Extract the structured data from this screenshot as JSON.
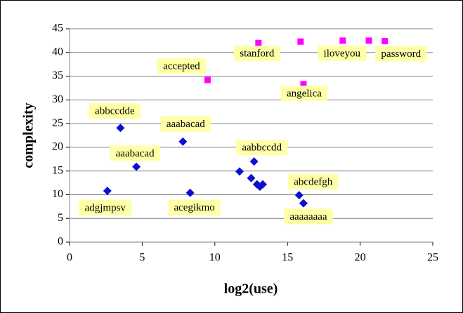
{
  "chart_data": {
    "type": "scatter",
    "xlabel": "log2(use)",
    "ylabel": "complexity",
    "xlim": [
      0,
      25
    ],
    "xticks": [
      0,
      5,
      10,
      15,
      20,
      25
    ],
    "ylim": [
      0,
      45
    ],
    "yticks": [
      0,
      5,
      10,
      15,
      20,
      25,
      30,
      35,
      40,
      45
    ],
    "grid": true,
    "series": [
      {
        "color": "#0a10d0",
        "marker": "diamond",
        "x": [
          2.6,
          3.5,
          4.6,
          7.8,
          8.3,
          11.7,
          12.5,
          12.7,
          12.9,
          13.1,
          13.3,
          15.8,
          16.1
        ],
        "values": [
          10.8,
          24.1,
          15.9,
          21.2,
          10.4,
          14.9,
          13.5,
          17.0,
          12.2,
          11.7,
          12.2,
          9.9,
          8.2
        ],
        "labels": [
          "adgjmpsv",
          "abbccdde",
          "aaabacad",
          "aaabacad",
          "acegikmo",
          null,
          null,
          "aabbccdd",
          null,
          null,
          null,
          "abcdefgh",
          "aaaaaaaa"
        ]
      },
      {
        "color": "#ff00ff",
        "marker": "square",
        "x": [
          9.5,
          13.0,
          15.9,
          16.1,
          18.8,
          20.6,
          21.7
        ],
        "values": [
          34.2,
          42.0,
          42.3,
          33.3,
          42.5,
          42.5,
          42.4
        ],
        "labels": [
          "accepted",
          "stanford",
          null,
          "angelica",
          "iloveyou",
          null,
          "password"
        ]
      }
    ]
  }
}
